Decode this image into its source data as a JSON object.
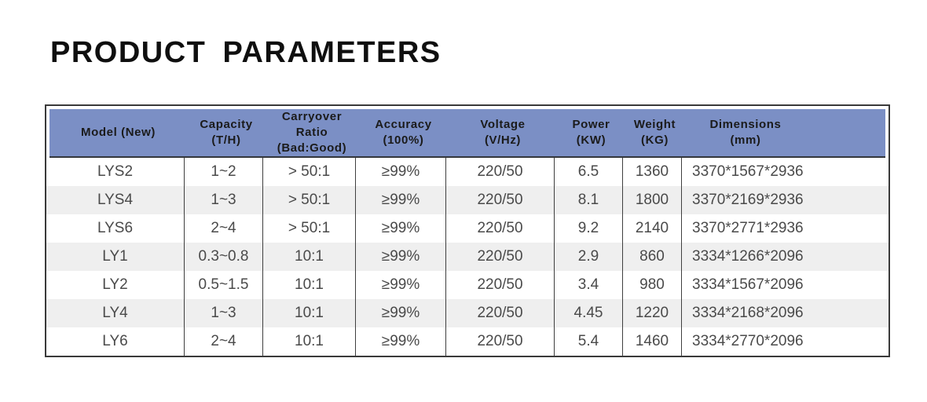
{
  "title": "PRODUCT PARAMETERS",
  "table": {
    "columns": [
      {
        "key": "model",
        "line1": "Model (New)",
        "line2": ""
      },
      {
        "key": "capacity",
        "line1": "Capacity",
        "line2": "(T/H)"
      },
      {
        "key": "carryover",
        "line1": "Carryover Ratio",
        "line2": "(Bad:Good)"
      },
      {
        "key": "accuracy",
        "line1": "Accuracy",
        "line2": "(100%)"
      },
      {
        "key": "voltage",
        "line1": "Voltage",
        "line2": "(V/Hz)"
      },
      {
        "key": "power",
        "line1": "Power",
        "line2": "(KW)"
      },
      {
        "key": "weight",
        "line1": "Weight",
        "line2": "(KG)"
      },
      {
        "key": "dimensions",
        "line1": "Dimensions",
        "line2": "(mm)"
      }
    ],
    "rows": [
      {
        "cells": [
          "LYS2",
          "1~2",
          "> 50:1",
          "≥99%",
          "220/50",
          "6.5",
          "1360",
          "3370*1567*2936"
        ]
      },
      {
        "cells": [
          "LYS4",
          "1~3",
          "> 50:1",
          "≥99%",
          "220/50",
          "8.1",
          "1800",
          "3370*2169*2936"
        ]
      },
      {
        "cells": [
          "LYS6",
          "2~4",
          "> 50:1",
          "≥99%",
          "220/50",
          "9.2",
          "2140",
          "3370*2771*2936"
        ]
      },
      {
        "cells": [
          "LY1",
          "0.3~0.8",
          "10:1",
          "≥99%",
          "220/50",
          "2.9",
          "860",
          "3334*1266*2096"
        ]
      },
      {
        "cells": [
          "LY2",
          "0.5~1.5",
          "10:1",
          "≥99%",
          "220/50",
          "3.4",
          "980",
          "3334*1567*2096"
        ]
      },
      {
        "cells": [
          "LY4",
          "1~3",
          "10:1",
          "≥99%",
          "220/50",
          "4.45",
          "1220",
          "3334*2168*2096"
        ]
      },
      {
        "cells": [
          "LY6",
          "2~4",
          "10:1",
          "≥99%",
          "220/50",
          "5.4",
          "1460",
          "3334*2770*2096"
        ]
      }
    ]
  },
  "colors": {
    "header_bg": "#7b8fc5",
    "stripe": "#efefef",
    "border": "#3a3a3a",
    "body_text": "#4a4a4a",
    "header_text": "#1b1b1b"
  }
}
